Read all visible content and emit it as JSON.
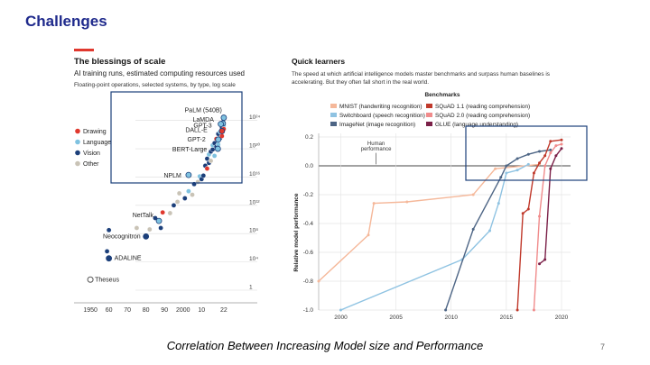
{
  "slide": {
    "title": "Challenges",
    "caption": "Correlation Between Increasing Model size and Performance",
    "page_number": "7"
  },
  "chart_data": [
    {
      "type": "scatter",
      "title": "The blessings of scale",
      "subtitle": "AI training runs, estimated computing resources used",
      "subtitle2": "Floating-point operations, selected systems, by type, log scale",
      "x_ticks": [
        "1950",
        "60",
        "70",
        "80",
        "90",
        "2000",
        "10",
        "22"
      ],
      "x_tick_values": [
        1950,
        1960,
        1970,
        1980,
        1990,
        2000,
        2010,
        2022
      ],
      "y_ticks": [
        "10²⁴",
        "10²⁰",
        "10¹⁶",
        "10¹²",
        "10⁸",
        "10⁴",
        "1"
      ],
      "y_tick_exponents": [
        24,
        20,
        16,
        12,
        8,
        4,
        0
      ],
      "xlim": [
        1948,
        2024
      ],
      "ylim_log10": [
        0,
        26
      ],
      "colors": {
        "Drawing": "#e0382e",
        "Language": "#7fc2e0",
        "Vision": "#1c3f7a",
        "Other": "#c9c3b6"
      },
      "legend": [
        {
          "name": "Drawing",
          "color": "#e0382e"
        },
        {
          "name": "Language",
          "color": "#7fc2e0"
        },
        {
          "name": "Vision",
          "color": "#1c3f7a"
        },
        {
          "name": "Other",
          "color": "#c9c3b6"
        }
      ],
      "labeled_points": [
        {
          "name": "PaLM (540B)",
          "x": 2022,
          "y": 24.4,
          "type": "Language"
        },
        {
          "name": "LaMDA",
          "x": 2021.5,
          "y": 23.6,
          "type": "Language"
        },
        {
          "name": "GPT-3",
          "x": 2020.4,
          "y": 23.5,
          "type": "Language"
        },
        {
          "name": "DALL-E",
          "x": 2021,
          "y": 22.5,
          "type": "Drawing"
        },
        {
          "name": "GPT-2",
          "x": 2019,
          "y": 21.3,
          "type": "Language"
        },
        {
          "name": "BERT-Large",
          "x": 2018.8,
          "y": 20.0,
          "type": "Language"
        },
        {
          "name": "NPLM",
          "x": 2003,
          "y": 16.3,
          "type": "Language"
        },
        {
          "name": "NetTalk",
          "x": 1987,
          "y": 9.8,
          "type": "Language"
        },
        {
          "name": "Neocognitron",
          "x": 1980,
          "y": 7.6,
          "type": "Vision"
        },
        {
          "name": "ADALINE",
          "x": 1960,
          "y": 4.5,
          "type": "Vision"
        },
        {
          "name": "Theseus",
          "x": 1950,
          "y": 1.5,
          "type": "Other"
        }
      ],
      "points": [
        {
          "x": 1959,
          "y": 5.5,
          "type": "Vision"
        },
        {
          "x": 1960,
          "y": 8.5,
          "type": "Vision"
        },
        {
          "x": 1975,
          "y": 8.8,
          "type": "Other"
        },
        {
          "x": 1982,
          "y": 8.6,
          "type": "Other"
        },
        {
          "x": 1985,
          "y": 10.2,
          "type": "Vision"
        },
        {
          "x": 1988,
          "y": 8.8,
          "type": "Vision"
        },
        {
          "x": 1989,
          "y": 11.0,
          "type": "Drawing"
        },
        {
          "x": 1993,
          "y": 10.9,
          "type": "Other"
        },
        {
          "x": 1995,
          "y": 12.0,
          "type": "Vision"
        },
        {
          "x": 1997,
          "y": 12.5,
          "type": "Other"
        },
        {
          "x": 1998,
          "y": 13.7,
          "type": "Other"
        },
        {
          "x": 2001,
          "y": 13.0,
          "type": "Vision"
        },
        {
          "x": 2003,
          "y": 14.0,
          "type": "Language"
        },
        {
          "x": 2005,
          "y": 13.5,
          "type": "Other"
        },
        {
          "x": 2006,
          "y": 15.0,
          "type": "Vision"
        },
        {
          "x": 2008,
          "y": 15.3,
          "type": "Other"
        },
        {
          "x": 2009,
          "y": 16.1,
          "type": "Language"
        },
        {
          "x": 2010,
          "y": 15.7,
          "type": "Vision"
        },
        {
          "x": 2011,
          "y": 16.2,
          "type": "Vision"
        },
        {
          "x": 2012,
          "y": 17.6,
          "type": "Vision"
        },
        {
          "x": 2013,
          "y": 17.2,
          "type": "Drawing"
        },
        {
          "x": 2013,
          "y": 18.6,
          "type": "Vision"
        },
        {
          "x": 2014,
          "y": 18.0,
          "type": "Vision"
        },
        {
          "x": 2014,
          "y": 19.2,
          "type": "Language"
        },
        {
          "x": 2015,
          "y": 19.6,
          "type": "Vision"
        },
        {
          "x": 2015,
          "y": 18.3,
          "type": "Other"
        },
        {
          "x": 2016,
          "y": 19.9,
          "type": "Vision"
        },
        {
          "x": 2016,
          "y": 20.5,
          "type": "Language"
        },
        {
          "x": 2017,
          "y": 20.8,
          "type": "Vision"
        },
        {
          "x": 2017,
          "y": 19.0,
          "type": "Language"
        },
        {
          "x": 2018,
          "y": 21.4,
          "type": "Drawing"
        },
        {
          "x": 2018,
          "y": 20.3,
          "type": "Vision"
        },
        {
          "x": 2019,
          "y": 22.1,
          "type": "Vision"
        },
        {
          "x": 2019,
          "y": 20.6,
          "type": "Language"
        },
        {
          "x": 2020,
          "y": 22.4,
          "type": "Language"
        },
        {
          "x": 2020,
          "y": 21.5,
          "type": "Vision"
        },
        {
          "x": 2021,
          "y": 23.0,
          "type": "Vision"
        },
        {
          "x": 2021,
          "y": 21.8,
          "type": "Drawing"
        },
        {
          "x": 2022,
          "y": 23.3,
          "type": "Language"
        },
        {
          "x": 2022,
          "y": 22.8,
          "type": "Drawing"
        }
      ]
    },
    {
      "type": "line",
      "title": "Quick learners",
      "subtitle": "The speed at which artificial intelligence models master benchmarks and surpass human baselines is accelerating. But they often fall short in the real world.",
      "legend_title": "Benchmarks",
      "ylabel": "Relative model performance",
      "annotation": "Human performance",
      "xlim": [
        1998,
        2020
      ],
      "ylim": [
        -1.0,
        0.25
      ],
      "x_ticks": [
        2000,
        2005,
        2010,
        2015,
        2020
      ],
      "y_ticks": [
        0.2,
        0.0,
        -0.2,
        -0.4,
        -0.6,
        -0.8,
        -1.0
      ],
      "y_tick_labels": [
        "0.2",
        "0.0",
        "-0.2",
        "-0.4",
        "-0.6",
        "-0.8",
        "-1.0"
      ],
      "series": [
        {
          "name": "MNIST (handwriting recognition)",
          "color": "#f5b89a",
          "x": [
            1998,
            2002.5,
            2003,
            2006,
            2012,
            2014,
            2018
          ],
          "y": [
            -0.8,
            -0.48,
            -0.26,
            -0.25,
            -0.2,
            -0.02,
            0.01
          ]
        },
        {
          "name": "Switchboard (speech recognition)",
          "color": "#8fc3e2",
          "x": [
            2000,
            2011,
            2013.5,
            2014.3,
            2015,
            2016,
            2017
          ],
          "y": [
            -1.0,
            -0.65,
            -0.45,
            -0.26,
            -0.05,
            -0.03,
            0.01
          ]
        },
        {
          "name": "ImageNet (image recognition)",
          "color": "#4d6585",
          "x": [
            2009.5,
            2012,
            2014.5,
            2015,
            2016,
            2017,
            2018,
            2019
          ],
          "y": [
            -1.0,
            -0.44,
            -0.08,
            0.0,
            0.05,
            0.08,
            0.1,
            0.11
          ]
        },
        {
          "name": "SQuAD 1.1 (reading comprehension)",
          "color": "#c0392b",
          "x": [
            2016,
            2016.5,
            2017,
            2017.5,
            2018,
            2018.5,
            2019,
            2020
          ],
          "y": [
            -1.0,
            -0.33,
            -0.3,
            -0.05,
            0.02,
            0.07,
            0.17,
            0.18
          ]
        },
        {
          "name": "SQuAD 2.0 (reading comprehension)",
          "color": "#f08b8b",
          "x": [
            2017.5,
            2018,
            2018.5,
            2019,
            2019.5,
            2020
          ],
          "y": [
            -1.0,
            -0.35,
            0.0,
            0.09,
            0.14,
            0.15
          ]
        },
        {
          "name": "GLUE (language understanding)",
          "color": "#7b2048",
          "x": [
            2018,
            2018.5,
            2019,
            2019.5,
            2020
          ],
          "y": [
            -0.68,
            -0.65,
            -0.02,
            0.07,
            0.12
          ]
        }
      ]
    }
  ]
}
